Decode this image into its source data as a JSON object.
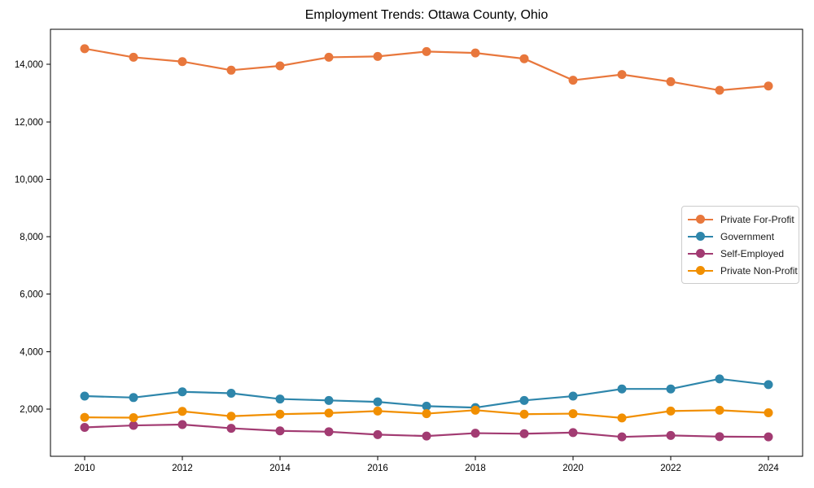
{
  "chart_data": {
    "type": "line",
    "title": "Employment Trends: Ottawa County, Ohio",
    "xlabel": "",
    "ylabel": "",
    "x": [
      2010,
      2011,
      2012,
      2013,
      2014,
      2015,
      2016,
      2017,
      2018,
      2019,
      2020,
      2021,
      2022,
      2023,
      2024
    ],
    "series": [
      {
        "name": "Private For-Profit",
        "color": "#E8773C",
        "values": [
          14550,
          14250,
          14100,
          13800,
          13950,
          14250,
          14280,
          14450,
          14400,
          14200,
          13450,
          13650,
          13400,
          13100,
          13250
        ]
      },
      {
        "name": "Government",
        "color": "#2E86AB",
        "values": [
          2450,
          2400,
          2600,
          2550,
          2350,
          2300,
          2250,
          2100,
          2050,
          2300,
          2450,
          2700,
          2700,
          3050,
          2850
        ]
      },
      {
        "name": "Self-Employed",
        "color": "#A23B72",
        "values": [
          1360,
          1430,
          1460,
          1330,
          1240,
          1210,
          1110,
          1060,
          1160,
          1140,
          1180,
          1030,
          1080,
          1040,
          1030
        ]
      },
      {
        "name": "Private Non-Profit",
        "color": "#F18F01",
        "values": [
          1710,
          1700,
          1920,
          1750,
          1820,
          1860,
          1930,
          1840,
          1960,
          1820,
          1840,
          1690,
          1930,
          1960,
          1870
        ]
      }
    ],
    "x_ticks": [
      2010,
      2012,
      2014,
      2016,
      2018,
      2020,
      2022,
      2024
    ],
    "y_ticks": [
      2000,
      4000,
      6000,
      8000,
      10000,
      12000,
      14000
    ],
    "y_tick_labels": [
      "2,000",
      "4,000",
      "6,000",
      "8,000",
      "10,000",
      "12,000",
      "14,000"
    ],
    "xlim": [
      2009.3,
      2024.7
    ],
    "ylim": [
      355,
      15225
    ],
    "grid": false,
    "legend_position": "center right"
  }
}
